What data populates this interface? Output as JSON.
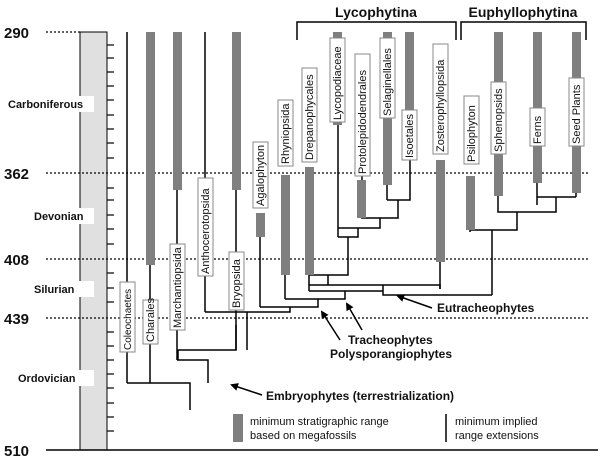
{
  "time_scale": {
    "ticks": [
      "290",
      "362",
      "408",
      "439",
      "510"
    ],
    "periods": [
      "Carboniferous",
      "Devonian",
      "Silurian",
      "Ordovician"
    ]
  },
  "groups": {
    "lycophytina": "Lycophytina",
    "euphyllophytina": "Euphyllophytina"
  },
  "taxa": {
    "coleochaetes": "Coleochaetes",
    "charales": "Charales",
    "marchantiopsida": "Marchantiopsida",
    "anthocerotopsida": "Anthocerotopsida",
    "bryopsida": "Bryopsida",
    "agalophyton": "Agalophyton",
    "rhyniopsida": "Rhyniopsida",
    "drepanophycales": "Drepanophycales",
    "lycopodiaceae": "Lycopodiaceae",
    "protolepidodendrales": "Protolepidodendrales",
    "selaginellales": "Selaginellales",
    "isoetales": "Isoetales",
    "zosterophyllopsida": "Zosterophyllopsida",
    "psilophyton": "Psilophyton",
    "sphenopsids": "Sphenopsids",
    "ferns": "Ferns",
    "seed_plants": "Seed Plants"
  },
  "nodes": {
    "eutracheophytes": "Eutracheophytes",
    "tracheophytes": "Tracheophytes",
    "polysporangiophytes": "Polysporangiophytes",
    "embryophytes": "Embryophytes (terrestrialization)"
  },
  "legend": {
    "bar_line1": "minimum stratigraphic range",
    "bar_line2": "based on megafossils",
    "line_line1": "minimum implied",
    "line_line2": "range extensions"
  },
  "colors": {
    "bar": "#7f7f7f",
    "column": "#e0e0e0",
    "line": "#000000"
  }
}
